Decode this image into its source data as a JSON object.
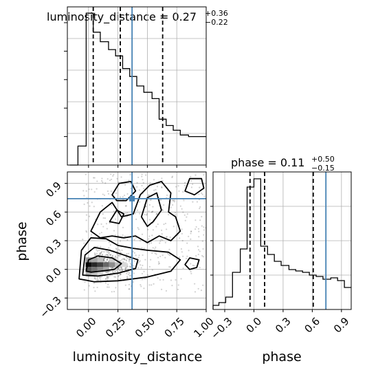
{
  "chart_data": [
    {
      "type": "histogram",
      "panel": "luminosity_distance-marginal",
      "title": {
        "main": "luminosity_distance = 0.27",
        "upper": "+0.36",
        "lower": "−0.22"
      },
      "xlim": [
        -0.18,
        1.0
      ],
      "ylim": [
        0,
        1.0
      ],
      "bin_edges": [
        -0.16,
        -0.09,
        -0.02,
        0.04,
        0.1,
        0.17,
        0.23,
        0.29,
        0.35,
        0.41,
        0.47,
        0.54,
        0.6,
        0.66,
        0.72,
        0.78,
        0.85,
        0.91,
        0.97,
        1.0
      ],
      "counts": [
        0.0,
        0.12,
        0.96,
        0.84,
        0.78,
        0.73,
        0.69,
        0.61,
        0.56,
        0.5,
        0.46,
        0.42,
        0.29,
        0.25,
        0.22,
        0.19,
        0.18,
        0.18,
        0.18
      ],
      "quantile_lines": [
        0.04,
        0.27,
        0.63
      ],
      "truth": 0.37,
      "grid": true
    },
    {
      "type": "histogram",
      "panel": "phase-marginal",
      "title": {
        "main": "phase = 0.11",
        "upper": "+0.50",
        "lower": "−0.15"
      },
      "xlim": [
        -0.42,
        1.0
      ],
      "ylim": [
        0,
        1.0
      ],
      "bin_edges": [
        -0.42,
        -0.36,
        -0.29,
        -0.22,
        -0.14,
        -0.07,
        0.0,
        0.07,
        0.14,
        0.21,
        0.28,
        0.36,
        0.43,
        0.5,
        0.57,
        0.64,
        0.71,
        0.79,
        0.86,
        0.93,
        1.0
      ],
      "counts": [
        0.03,
        0.05,
        0.09,
        0.27,
        0.44,
        0.89,
        0.95,
        0.46,
        0.4,
        0.35,
        0.32,
        0.29,
        0.28,
        0.27,
        0.25,
        0.24,
        0.22,
        0.23,
        0.21,
        0.16
      ],
      "quantile_lines": [
        -0.04,
        0.11,
        0.61
      ],
      "truth": 0.74,
      "xlabel": "phase",
      "xticks": [
        "−0.3",
        "0.0",
        "0.3",
        "0.6",
        "0.9"
      ],
      "grid": true
    },
    {
      "type": "scatter",
      "panel": "joint-2d",
      "xlabel": "luminosity_distance",
      "ylabel": "phase",
      "xlim": [
        -0.18,
        1.0
      ],
      "ylim": [
        -0.42,
        1.02
      ],
      "xticks": [
        "0.00",
        "0.25",
        "0.50",
        "0.75",
        "1.00"
      ],
      "yticks": [
        "−0.3",
        "0.0",
        "0.3",
        "0.6",
        "0.9"
      ],
      "truth": {
        "x": 0.37,
        "y": 0.74
      },
      "density_cells": [
        {
          "x": 0.0,
          "y": 0.05,
          "v": 0.95
        },
        {
          "x": 0.05,
          "y": 0.05,
          "v": 0.85
        },
        {
          "x": 0.1,
          "y": 0.05,
          "v": 0.75
        },
        {
          "x": 0.15,
          "y": 0.05,
          "v": 0.6
        },
        {
          "x": 0.2,
          "y": 0.05,
          "v": 0.45
        },
        {
          "x": 0.0,
          "y": 0.0,
          "v": 0.65
        },
        {
          "x": 0.05,
          "y": 0.0,
          "v": 0.55
        },
        {
          "x": 0.1,
          "y": 0.0,
          "v": 0.45
        },
        {
          "x": 0.15,
          "y": 0.0,
          "v": 0.35
        },
        {
          "x": 0.0,
          "y": 0.1,
          "v": 0.4
        },
        {
          "x": 0.05,
          "y": 0.1,
          "v": 0.35
        },
        {
          "x": 0.1,
          "y": 0.1,
          "v": 0.25
        },
        {
          "x": 0.25,
          "y": 0.05,
          "v": 0.25
        },
        {
          "x": 0.2,
          "y": 0.1,
          "v": 0.2
        },
        {
          "x": 0.3,
          "y": 0.05,
          "v": 0.15
        },
        {
          "x": 0.0,
          "y": -0.05,
          "v": 0.3
        },
        {
          "x": 0.05,
          "y": -0.05,
          "v": 0.25
        },
        {
          "x": 0.1,
          "y": -0.05,
          "v": 0.15
        }
      ],
      "contours": [
        [
          [
            -0.02,
            -0.02
          ],
          [
            0.0,
            0.1
          ],
          [
            0.08,
            0.14
          ],
          [
            0.2,
            0.12
          ],
          [
            0.28,
            0.06
          ],
          [
            0.22,
            0.0
          ],
          [
            0.1,
            -0.02
          ],
          [
            0.02,
            -0.03
          ]
        ],
        [
          [
            -0.05,
            -0.06
          ],
          [
            -0.03,
            0.15
          ],
          [
            0.05,
            0.23
          ],
          [
            0.18,
            0.2
          ],
          [
            0.3,
            0.15
          ],
          [
            0.42,
            0.1
          ],
          [
            0.4,
            0.01
          ],
          [
            0.25,
            -0.04
          ],
          [
            0.08,
            -0.07
          ]
        ],
        [
          [
            -0.08,
            -0.1
          ],
          [
            -0.06,
            0.2
          ],
          [
            0.02,
            0.33
          ],
          [
            0.15,
            0.32
          ],
          [
            0.25,
            0.25
          ],
          [
            0.38,
            0.22
          ],
          [
            0.5,
            0.2
          ],
          [
            0.68,
            0.18
          ],
          [
            0.78,
            0.1
          ],
          [
            0.7,
            -0.02
          ],
          [
            0.5,
            -0.08
          ],
          [
            0.25,
            -0.12
          ],
          [
            0.05,
            -0.13
          ]
        ],
        [
          [
            0.02,
            0.4
          ],
          [
            0.1,
            0.6
          ],
          [
            0.2,
            0.7
          ],
          [
            0.28,
            0.55
          ],
          [
            0.38,
            0.58
          ],
          [
            0.44,
            0.78
          ],
          [
            0.52,
            0.88
          ],
          [
            0.62,
            0.92
          ],
          [
            0.7,
            0.8
          ],
          [
            0.68,
            0.6
          ],
          [
            0.74,
            0.55
          ],
          [
            0.78,
            0.4
          ],
          [
            0.7,
            0.3
          ],
          [
            0.6,
            0.35
          ],
          [
            0.5,
            0.28
          ],
          [
            0.4,
            0.35
          ],
          [
            0.3,
            0.33
          ],
          [
            0.2,
            0.35
          ],
          [
            0.1,
            0.33
          ]
        ],
        [
          [
            0.18,
            0.5
          ],
          [
            0.24,
            0.62
          ],
          [
            0.3,
            0.58
          ],
          [
            0.26,
            0.48
          ]
        ],
        [
          [
            0.45,
            0.55
          ],
          [
            0.5,
            0.75
          ],
          [
            0.58,
            0.8
          ],
          [
            0.62,
            0.62
          ],
          [
            0.55,
            0.5
          ],
          [
            0.5,
            0.45
          ]
        ],
        [
          [
            0.2,
            0.78
          ],
          [
            0.26,
            0.9
          ],
          [
            0.36,
            0.92
          ],
          [
            0.4,
            0.82
          ],
          [
            0.32,
            0.72
          ],
          [
            0.24,
            0.72
          ]
        ],
        [
          [
            0.82,
            0.82
          ],
          [
            0.86,
            0.95
          ],
          [
            0.96,
            0.95
          ],
          [
            0.98,
            0.85
          ],
          [
            0.9,
            0.78
          ]
        ],
        [
          [
            0.82,
            0.05
          ],
          [
            0.86,
            0.12
          ],
          [
            0.94,
            0.1
          ],
          [
            0.92,
            0.02
          ],
          [
            0.86,
            0.0
          ]
        ]
      ],
      "scatter_seed": 7,
      "scatter_count": 900
    }
  ]
}
